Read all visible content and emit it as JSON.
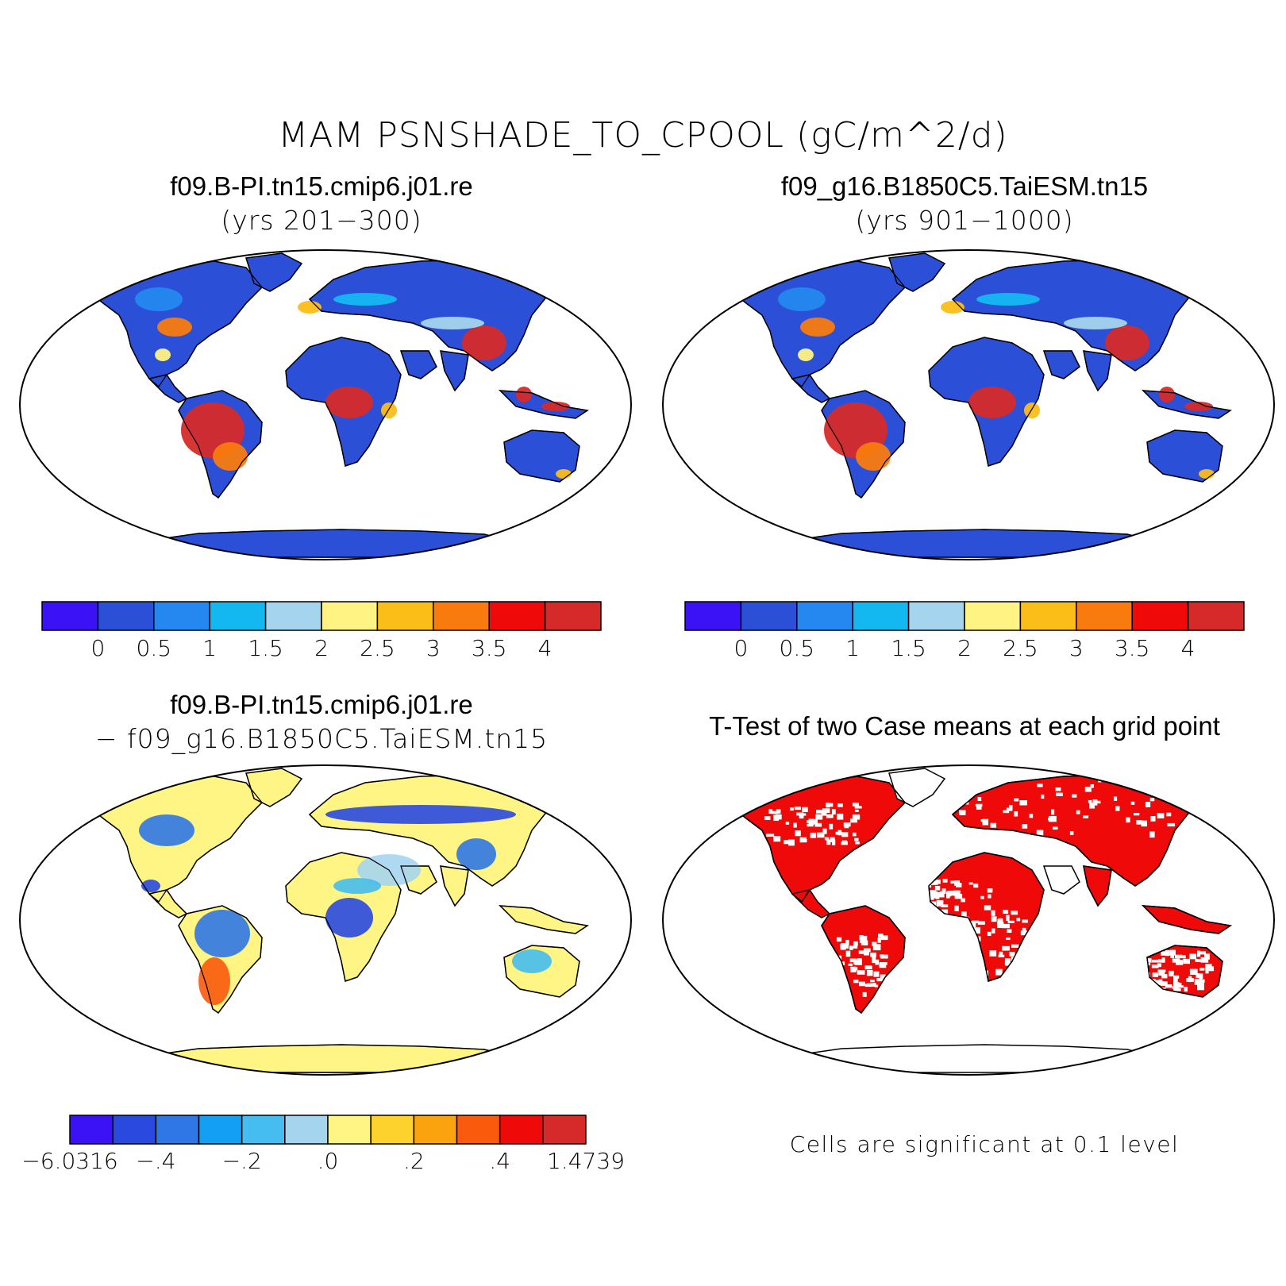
{
  "figure": {
    "title": "MAM PSNSHADE_TO_CPOOL (gC/m^2/d)"
  },
  "panels": {
    "top_left": {
      "title": "f09.B-PI.tn15.cmip6.j01.re",
      "subtitle": "(yrs 201−300)"
    },
    "top_right": {
      "title": "f09_g16.B1850C5.TaiESM.tn15",
      "subtitle": "(yrs 901−1000)"
    },
    "bottom_left": {
      "title": "f09.B-PI.tn15.cmip6.j01.re",
      "subtitle": "− f09_g16.B1850C5.TaiESM.tn15"
    },
    "bottom_right": {
      "title": "T-Test of two Case means at each grid point",
      "note": "Cells are significant at 0.1 level"
    }
  },
  "colorbar_main": {
    "colors": [
      "#3b12f5",
      "#2c4fd8",
      "#2488f0",
      "#14b8f0",
      "#a5d5ee",
      "#fff383",
      "#fbbd18",
      "#f97b0e",
      "#ef0909",
      "#d62a2a"
    ],
    "labels": [
      "0",
      "0.5",
      "1",
      "1.5",
      "2",
      "2.5",
      "3",
      "3.5",
      "4"
    ]
  },
  "colorbar_diff": {
    "colors": [
      "#3b12f5",
      "#2a49df",
      "#2f77e6",
      "#13a0f4",
      "#46bdf0",
      "#a5d5ee",
      "#fff585",
      "#fdd22d",
      "#fba20f",
      "#f95a0c",
      "#ef0909",
      "#d62a2a"
    ],
    "labels": [
      "−6.0316",
      "−.4",
      "−.2",
      ".0",
      ".2",
      ".4",
      "1.4739"
    ]
  },
  "colors": {
    "land_low": "#2c4fd8",
    "land_high": "#d62a2a",
    "diff_base": "#fff585",
    "significant": "#ef0909"
  }
}
